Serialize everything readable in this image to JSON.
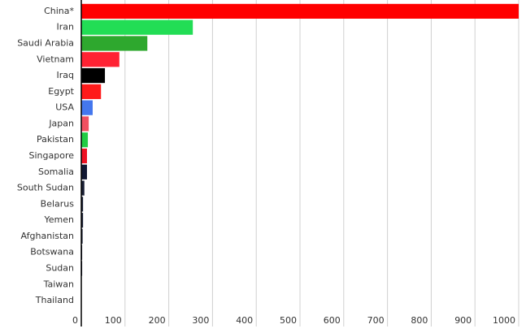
{
  "chart_data": {
    "type": "hbar",
    "categories": [
      "China*",
      "Iran",
      "Saudi Arabia",
      "Vietnam",
      "Iraq",
      "Egypt",
      "USA",
      "Japan",
      "Pakistan",
      "Singapore",
      "Somalia",
      "South Sudan",
      "Belarus",
      "Yemen",
      "Afghanistan",
      "Botswana",
      "Sudan",
      "Taiwan",
      "Thailand"
    ],
    "values": [
      1000,
      255,
      151,
      87,
      54,
      45,
      26,
      17,
      15,
      13,
      13,
      7,
      4,
      4,
      3,
      2,
      2,
      1,
      1
    ],
    "colors": [
      "#ff0000",
      "#22dd55",
      "#2ea82e",
      "#ff2233",
      "#000000",
      "#ff1a1a",
      "#4477ee",
      "#f05060",
      "#22cc44",
      "#ee1122",
      "#111833",
      "#1a2035",
      "#1a2035",
      "#1a2035",
      "#1a2035",
      "#1a2035",
      "#1a2035",
      "#1a2035",
      "#1a2035"
    ],
    "xlim": [
      0,
      1000
    ],
    "xticks": [
      0,
      100,
      200,
      300,
      400,
      500,
      600,
      700,
      800,
      900,
      1000
    ],
    "grid": true
  }
}
